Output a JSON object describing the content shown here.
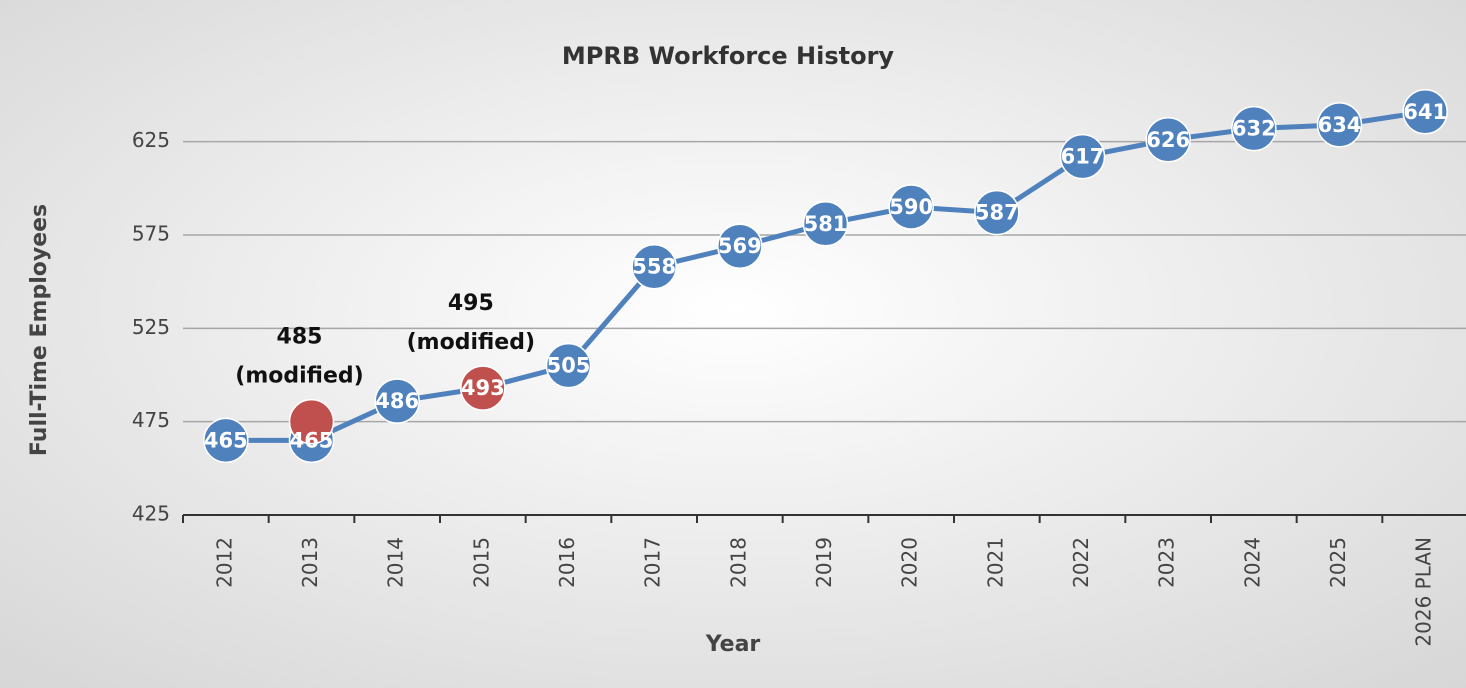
{
  "chart_data": {
    "type": "line",
    "title": "MPRB Workforce History",
    "x_label": "Year",
    "y_label": "Full-Time Employees",
    "categories": [
      "2012",
      "2013",
      "2014",
      "2015",
      "2016",
      "2017",
      "2018",
      "2019",
      "2020",
      "2021",
      "2022",
      "2023",
      "2024",
      "2025",
      "2026 PLAN"
    ],
    "series": [
      {
        "color": "#4f81bd",
        "values": [
          465,
          465,
          486,
          493,
          505,
          558,
          569,
          581,
          590,
          587,
          617,
          626,
          632,
          634,
          641
        ],
        "line": true,
        "labels": true
      },
      {
        "color": "#c0504d",
        "values": [
          null,
          475,
          null,
          493,
          null,
          null,
          null,
          null,
          null,
          null,
          null,
          null,
          null,
          null,
          null
        ],
        "line": false,
        "labels": false
      }
    ],
    "annotations": [
      [
        "485",
        "(modified)"
      ],
      [
        "495",
        "(modified)"
      ]
    ],
    "ylim": [
      425,
      650
    ],
    "yticks": [
      425,
      475,
      525,
      575,
      625
    ],
    "grid": true
  }
}
